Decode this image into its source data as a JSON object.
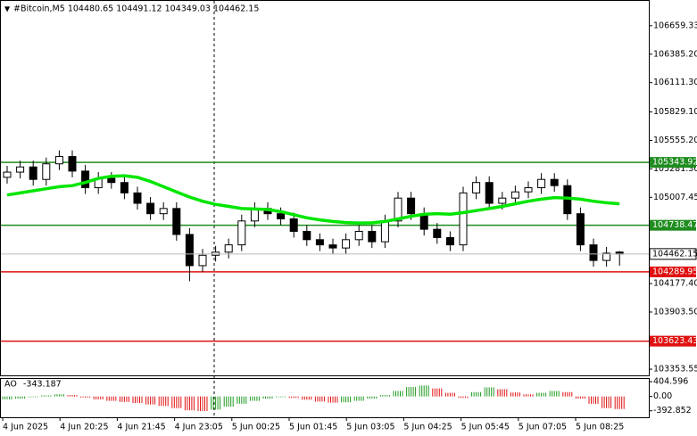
{
  "chart_data": [
    {
      "type": "candlestick",
      "title": "#Bitcoin,M5  104480.65 104491.12 104349.03 104462.15",
      "x_labels": [
        "4 Jun 2025",
        "4 Jun 20:25",
        "4 Jun 21:45",
        "4 Jun 23:05",
        "5 Jun 00:25",
        "5 Jun 01:45",
        "5 Jun 03:05",
        "5 Jun 04:25",
        "5 Jun 05:45",
        "5 Jun 07:05",
        "5 Jun 08:25"
      ],
      "open": [
        105200,
        105250,
        105300,
        105180,
        105330,
        105400,
        105260,
        105100,
        105190,
        105150,
        105050,
        104950,
        104850,
        104900,
        104650,
        104350,
        104450,
        104480,
        104550,
        104780,
        104900,
        104850,
        104800,
        104680,
        104600,
        104550,
        104520,
        104600,
        104680,
        104580,
        104780,
        105000,
        104850,
        104700,
        104620,
        104550,
        105050,
        105150,
        104950,
        105000,
        105060,
        105100,
        105180,
        105120,
        104850,
        104550,
        104400,
        104480.65
      ],
      "high": [
        105310,
        105360,
        105360,
        105390,
        105460,
        105460,
        105320,
        105250,
        105250,
        105210,
        105110,
        105010,
        104960,
        104960,
        104710,
        104510,
        104540,
        104610,
        104840,
        104960,
        104960,
        104910,
        104860,
        104740,
        104660,
        104610,
        104660,
        104740,
        104740,
        104840,
        105060,
        105060,
        104910,
        104760,
        104680,
        105110,
        105210,
        105210,
        105060,
        105120,
        105160,
        105240,
        105240,
        105180,
        104910,
        104610,
        104530,
        104491.12
      ],
      "low": [
        105140,
        105190,
        105120,
        105120,
        105270,
        105200,
        105040,
        105040,
        105090,
        104990,
        104890,
        104790,
        104790,
        104590,
        104200,
        104290,
        104390,
        104420,
        104490,
        104720,
        104790,
        104740,
        104620,
        104540,
        104490,
        104460,
        104460,
        104540,
        104520,
        104520,
        104720,
        104790,
        104640,
        104560,
        104490,
        104490,
        104990,
        104890,
        104890,
        104940,
        105000,
        105040,
        105060,
        104790,
        104490,
        104340,
        104340,
        104349.03
      ],
      "close": [
        105250,
        105300,
        105180,
        105330,
        105400,
        105260,
        105100,
        105190,
        105150,
        105050,
        104950,
        104850,
        104900,
        104650,
        104350,
        104450,
        104480,
        104550,
        104780,
        104900,
        104850,
        104800,
        104680,
        104600,
        104550,
        104520,
        104600,
        104680,
        104580,
        104780,
        105000,
        104850,
        104700,
        104620,
        104550,
        105050,
        105150,
        104950,
        105000,
        105060,
        105100,
        105180,
        105120,
        104850,
        104550,
        104400,
        104470,
        104462.15
      ],
      "ma": {
        "color": "#00e600",
        "values": [
          105030,
          105050,
          105070,
          105090,
          105110,
          105120,
          105150,
          105190,
          105210,
          105215,
          105200,
          105160,
          105110,
          105060,
          105010,
          104970,
          104940,
          104920,
          104900,
          104895,
          104890,
          104870,
          104840,
          104810,
          104790,
          104775,
          104765,
          104760,
          104762,
          104775,
          104800,
          104825,
          104845,
          104850,
          104845,
          104860,
          104880,
          104900,
          104920,
          104945,
          104970,
          104990,
          105005,
          105000,
          104990,
          104970,
          104955,
          104945
        ]
      },
      "levels": [
        {
          "value": 105343.92,
          "color": "#1e8c1e"
        },
        {
          "value": 104738.47,
          "color": "#1e8c1e"
        },
        {
          "value": 104289.95,
          "color": "#e01010"
        },
        {
          "value": 103623.43,
          "color": "#e01010"
        }
      ],
      "ylim": [
        103294,
        106898
      ],
      "yticks": [
        106659.33,
        {
          "value": 106385.2,
          "label": "106385.20"
        },
        {
          "value": 106111.3,
          "label": "106111.30"
        },
        {
          "value": 105829.1,
          "label": "105829.10"
        },
        {
          "value": 105555.2,
          "label": "105555.20"
        },
        {
          "value": 105281.3,
          "label": "105281.30"
        },
        105007.45,
        {
          "value": 104177.4,
          "label": "104177.40"
        },
        {
          "value": 103903.5,
          "label": "103903.50"
        },
        103353.55
      ]
    },
    {
      "type": "histogram",
      "title": "AO",
      "values": [
        -80,
        -60,
        -20,
        30,
        60,
        40,
        -30,
        -80,
        -120,
        -150,
        -180,
        -220,
        -260,
        -320,
        -380,
        -400,
        -360,
        -280,
        -200,
        -120,
        -60,
        -20,
        -40,
        -90,
        -140,
        -170,
        -160,
        -120,
        -60,
        40,
        150,
        260,
        300,
        220,
        100,
        -40,
        120,
        250,
        200,
        110,
        60,
        100,
        150,
        120,
        -60,
        -200,
        -320,
        -343.187
      ],
      "up_color": "#1e9a1e",
      "down_color": "#e01010",
      "ylim": [
        -570,
        480
      ],
      "yticks": [
        404.596,
        {
          "value": 0,
          "label": "0.00"
        },
        -392.852
      ]
    }
  ]
}
